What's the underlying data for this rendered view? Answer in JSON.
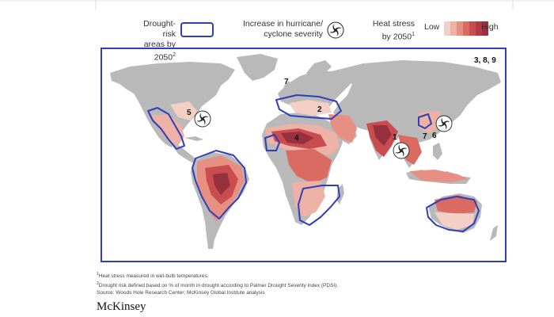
{
  "legend": {
    "drought_label_1": "Drought-risk",
    "drought_label_2": "areas by 2050",
    "drought_sup": "2",
    "hurricane_label_1": "Increase in hurricane/",
    "hurricane_label_2": "cyclone severity",
    "heat_label_1": "Heat stress",
    "heat_label_2": "by 2050",
    "heat_sup": "1",
    "scale_low": "Low",
    "scale_high": "High",
    "scale_colors": [
      "#f3cfc6",
      "#eeb1a5",
      "#e68f82",
      "#da6b62",
      "#c94c4f",
      "#b23a47",
      "#97303f"
    ],
    "outline_color": "#2e3fb8"
  },
  "map": {
    "corner_label": "3, 8, 9",
    "region_numbers": [
      "1",
      "2",
      "4",
      "5",
      "6",
      "7",
      "7"
    ]
  },
  "footnotes": {
    "note1_sup": "1",
    "note1": "Heat stress measured in wet-bulb temperatures.",
    "note2_sup": "2",
    "note2": "Drought risk defined based on % of month in drought according to Palmer Drought Severity index (PDSI).",
    "source": "Source: Woods Hole Research Center; McKinsey Global Institute analysis"
  },
  "brand": "McKinsey"
}
